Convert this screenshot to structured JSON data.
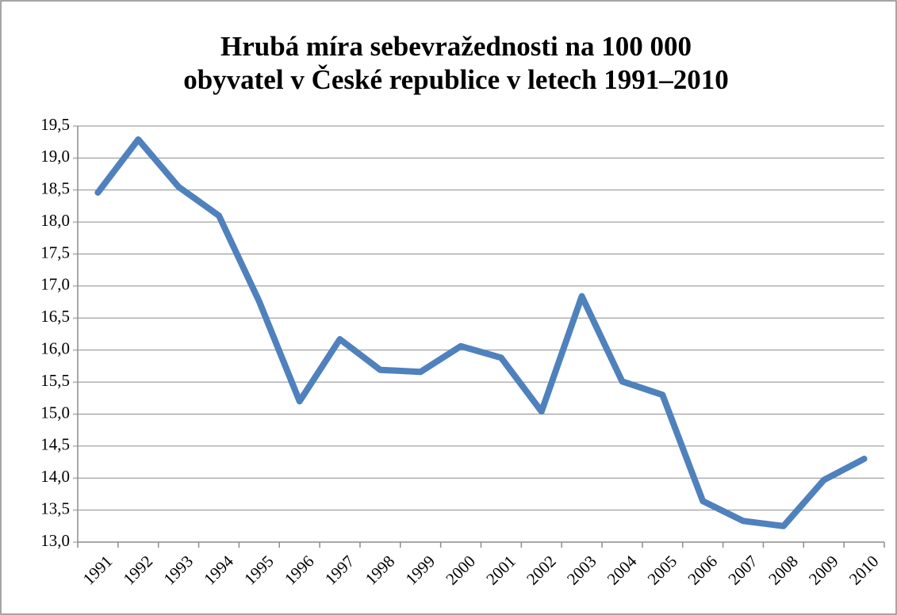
{
  "chart_data": {
    "type": "line",
    "title": [
      "Hrubá míra sebevražednosti na 100 000",
      "obyvatel v České republice v letech 1991–2010"
    ],
    "categories": [
      "1991",
      "1992",
      "1993",
      "1994",
      "1995",
      "1996",
      "1997",
      "1998",
      "1999",
      "2000",
      "2001",
      "2002",
      "2003",
      "2004",
      "2005",
      "2006",
      "2007",
      "2008",
      "2009",
      "2010"
    ],
    "values": [
      18.46,
      19.29,
      18.55,
      18.1,
      16.76,
      15.2,
      16.17,
      15.69,
      15.66,
      16.06,
      15.88,
      15.04,
      16.84,
      15.51,
      15.3,
      13.64,
      13.33,
      13.25,
      13.97,
      14.3
    ],
    "color": "#4f81bd",
    "ylim": [
      13,
      19.5
    ],
    "yticks": [
      {
        "value": 13,
        "label": "13,0"
      },
      {
        "value": 13.5,
        "label": "13,5"
      },
      {
        "value": 14,
        "label": "14,0"
      },
      {
        "value": 14.5,
        "label": "14,5"
      },
      {
        "value": 15,
        "label": "15,0"
      },
      {
        "value": 15.5,
        "label": "15,5"
      },
      {
        "value": 16,
        "label": "16,0"
      },
      {
        "value": 16.5,
        "label": "16,5"
      },
      {
        "value": 17,
        "label": "17,0"
      },
      {
        "value": 17.5,
        "label": "17,5"
      },
      {
        "value": 18,
        "label": "18,0"
      },
      {
        "value": 18.5,
        "label": "18,5"
      },
      {
        "value": 19,
        "label": "19,0"
      },
      {
        "value": 19.5,
        "label": "19,5"
      }
    ],
    "grid": true
  }
}
